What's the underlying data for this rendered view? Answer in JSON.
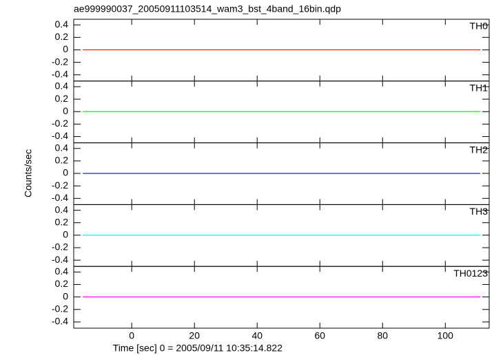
{
  "title": "ae999990037_20050911103514_wam3_bst_4band_16bin.qdp",
  "xlabel": "Time [sec] 0 = 2005/09/11 10:35:14.822",
  "ylabel": "Counts/sec",
  "chart_data": [
    {
      "type": "line",
      "label": "TH0",
      "x": [
        -15.6,
        111.2
      ],
      "values": [
        0,
        0
      ],
      "color": "#ff0000",
      "xlim": [
        -18.5,
        114
      ],
      "xticks": [
        0,
        20,
        40,
        60,
        80,
        100
      ],
      "ylim": [
        -0.5,
        0.49
      ],
      "yticks": [
        -0.4,
        -0.2,
        0,
        0.2,
        0.4
      ]
    },
    {
      "type": "line",
      "label": "TH1",
      "x": [
        -15.6,
        111.2
      ],
      "values": [
        0,
        0
      ],
      "color": "#00ff00",
      "xlim": [
        -18.5,
        114
      ],
      "xticks": [
        0,
        20,
        40,
        60,
        80,
        100
      ],
      "ylim": [
        -0.5,
        0.49
      ],
      "yticks": [
        -0.4,
        -0.2,
        0,
        0.2,
        0.4
      ]
    },
    {
      "type": "line",
      "label": "TH2",
      "x": [
        -15.6,
        111.2
      ],
      "values": [
        0,
        0
      ],
      "color": "#0000ff",
      "xlim": [
        -18.5,
        114
      ],
      "xticks": [
        0,
        20,
        40,
        60,
        80,
        100
      ],
      "ylim": [
        -0.5,
        0.49
      ],
      "yticks": [
        -0.4,
        -0.2,
        0,
        0.2,
        0.4
      ]
    },
    {
      "type": "line",
      "label": "TH3",
      "x": [
        -15.6,
        111.2
      ],
      "values": [
        0,
        0
      ],
      "color": "#00ffff",
      "xlim": [
        -18.5,
        114
      ],
      "xticks": [
        0,
        20,
        40,
        60,
        80,
        100
      ],
      "ylim": [
        -0.5,
        0.49
      ],
      "yticks": [
        -0.4,
        -0.2,
        0,
        0.2,
        0.4
      ]
    },
    {
      "type": "line",
      "label": "TH0123",
      "x": [
        -15.6,
        111.2
      ],
      "values": [
        0,
        0
      ],
      "color": "#ff00ff",
      "xlim": [
        -18.5,
        114
      ],
      "xticks": [
        0,
        20,
        40,
        60,
        80,
        100
      ],
      "ylim": [
        -0.5,
        0.49
      ],
      "yticks": [
        -0.4,
        -0.2,
        0,
        0.2,
        0.4
      ]
    }
  ]
}
